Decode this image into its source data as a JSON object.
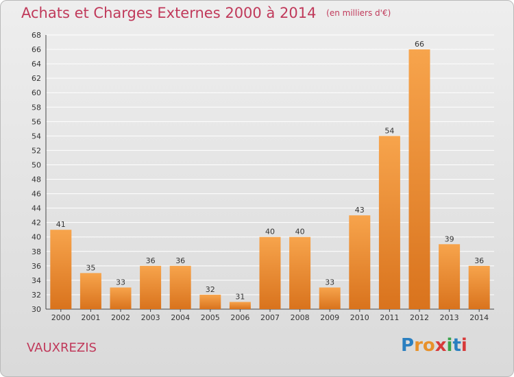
{
  "header": {
    "title": "Achats et Charges Externes 2000 à 2014",
    "unit": "(en milliers d'€)"
  },
  "commune": "VAUXREZIS",
  "logo": {
    "letters": [
      "P",
      "r",
      "o",
      "x",
      "i",
      "t",
      "i"
    ],
    "colors": [
      "#2a7fc0",
      "#e8912a",
      "#e8912a",
      "#d73a3a",
      "#3aa34a",
      "#2a7fc0",
      "#d73a3a"
    ]
  },
  "colors": {
    "accent": "#c0395a",
    "bar_light": "#f7a44c",
    "bar_dark": "#d9731d",
    "grid": "#ffffff"
  },
  "chart_data": {
    "type": "bar",
    "title": "Achats et Charges Externes 2000 à 2014",
    "subtitle": "(en milliers d'€)",
    "categories": [
      "2000",
      "2001",
      "2002",
      "2003",
      "2004",
      "2005",
      "2006",
      "2007",
      "2008",
      "2009",
      "2010",
      "2011",
      "2012",
      "2013",
      "2014"
    ],
    "values": [
      41,
      35,
      33,
      36,
      36,
      32,
      31,
      40,
      40,
      33,
      43,
      54,
      66,
      39,
      36
    ],
    "ylim": [
      30,
      68
    ],
    "yticks": [
      30,
      32,
      34,
      36,
      38,
      40,
      42,
      44,
      46,
      48,
      50,
      52,
      54,
      56,
      58,
      60,
      62,
      64,
      66,
      68
    ],
    "grid": true,
    "legend": "none"
  }
}
